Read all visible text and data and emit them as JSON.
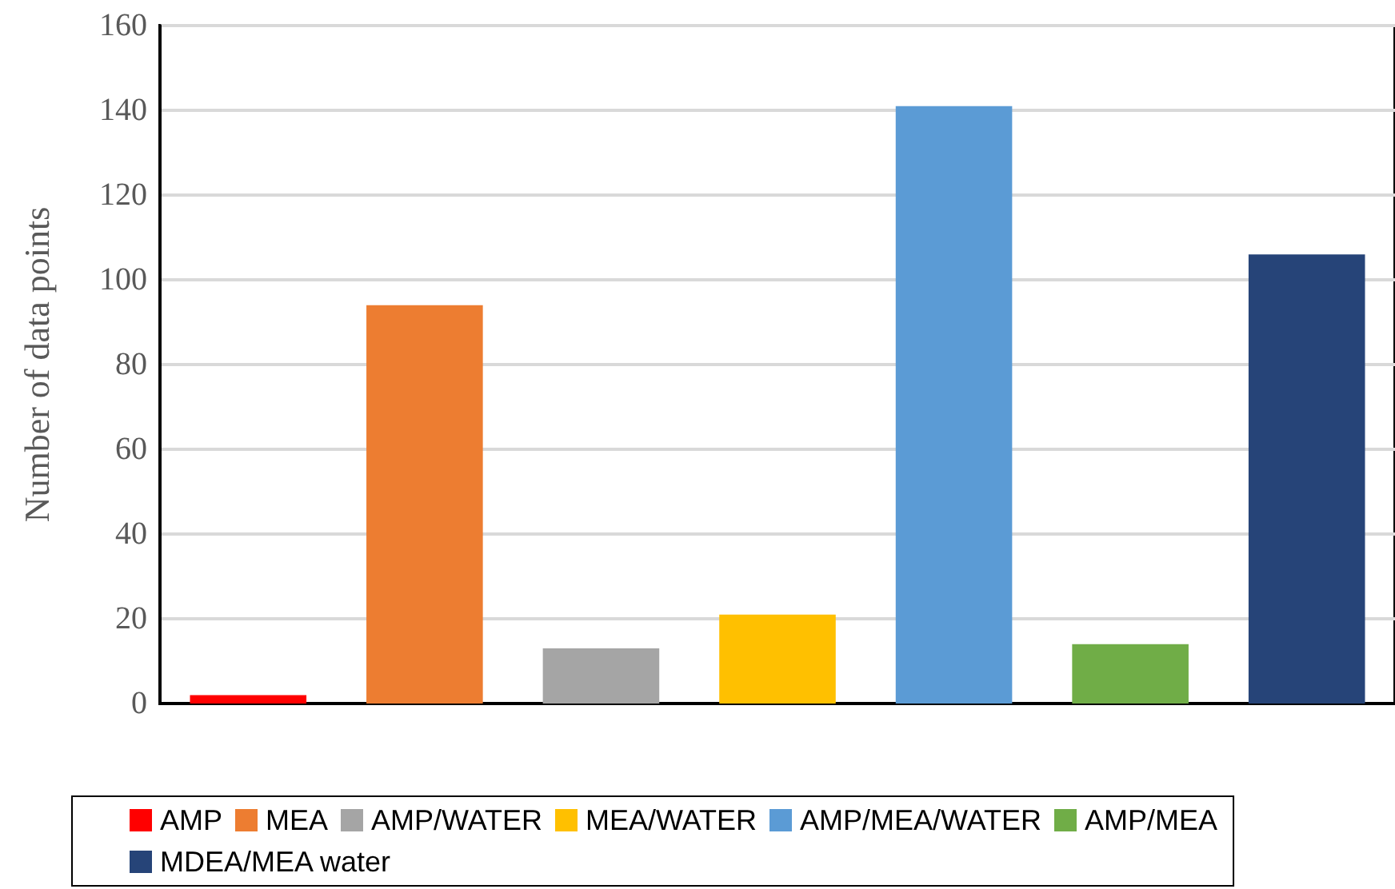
{
  "chart_data": {
    "type": "bar",
    "ylabel": "Number of data points",
    "categories": [
      null,
      null,
      null,
      null,
      null,
      null,
      null
    ],
    "series": [
      {
        "name": "AMP",
        "color": "#ff0000",
        "values": [
          2,
          null,
          null,
          null,
          null,
          null,
          null
        ]
      },
      {
        "name": "MEA",
        "color": "#ed7d31",
        "values": [
          null,
          94,
          null,
          null,
          null,
          null,
          null
        ]
      },
      {
        "name": "AMP/WATER",
        "color": "#a5a5a5",
        "values": [
          null,
          null,
          13,
          null,
          null,
          null,
          null
        ]
      },
      {
        "name": "MEA/WATER",
        "color": "#ffc000",
        "values": [
          null,
          null,
          null,
          21,
          null,
          null,
          null
        ]
      },
      {
        "name": "AMP/MEA/WATER",
        "color": "#5b9bd5",
        "values": [
          null,
          null,
          null,
          null,
          141,
          null,
          null
        ]
      },
      {
        "name": "AMP/MEA",
        "color": "#70ad47",
        "values": [
          null,
          null,
          null,
          null,
          null,
          14,
          null
        ]
      },
      {
        "name": "MDEA/MEA water",
        "color": "#264478",
        "values": [
          null,
          null,
          null,
          null,
          null,
          null,
          106
        ]
      }
    ],
    "ylim": [
      0,
      160
    ],
    "yticks": [
      0,
      20,
      40,
      60,
      80,
      100,
      120,
      140,
      160
    ],
    "grid": "y",
    "legend": "bottom",
    "tick_labels": "y"
  }
}
